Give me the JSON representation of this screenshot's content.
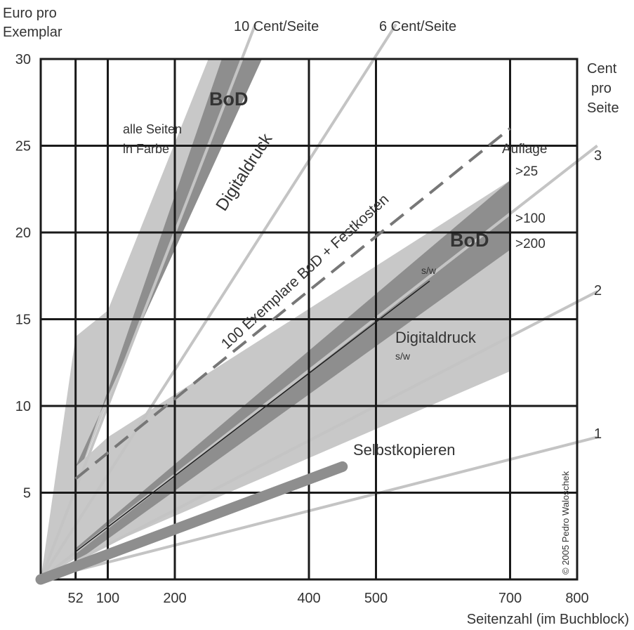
{
  "chart_data": {
    "type": "area",
    "xlabel": "Seitenzahl (im Buchblock)",
    "ylabel_line1": "Euro pro",
    "ylabel_line2": "Exemplar",
    "right_axis_line1": "Cent",
    "right_axis_line2": "pro",
    "right_axis_line3": "Seite",
    "x_ticks": [
      52,
      100,
      200,
      400,
      500,
      700,
      800
    ],
    "y_ticks": [
      5,
      10,
      15,
      20,
      25,
      30
    ],
    "xlim": [
      0,
      800
    ],
    "ylim": [
      0,
      30
    ],
    "grid": true,
    "colors": {
      "band_light": "#c8c8c8",
      "band_dark": "#8e8e8e",
      "reference_line": "#c4c4c4",
      "grid": "#1a1a1a",
      "dashed": "#777777",
      "text": "#333333"
    },
    "reference_lines": [
      {
        "label": "10 Cent/Seite",
        "cent_per_page": 10,
        "points": [
          [
            0,
            0
          ],
          [
            320,
            32
          ]
        ]
      },
      {
        "label": "6 Cent/Seite",
        "cent_per_page": 6,
        "points": [
          [
            0,
            0
          ],
          [
            530,
            32
          ]
        ]
      },
      {
        "label": "3",
        "cent_per_page": 3,
        "points": [
          [
            0,
            0
          ],
          [
            830,
            25
          ]
        ]
      },
      {
        "label": "2",
        "cent_per_page": 2,
        "points": [
          [
            0,
            0
          ],
          [
            830,
            16.6
          ]
        ]
      },
      {
        "label": "1",
        "cent_per_page": 1,
        "points": [
          [
            0,
            0
          ],
          [
            830,
            8.2
          ]
        ]
      }
    ],
    "regions": [
      {
        "name": "Digitaldruck (Farbe)",
        "points": [
          [
            0,
            0
          ],
          [
            52,
            14
          ],
          [
            100,
            15.5
          ],
          [
            250,
            30
          ],
          [
            300,
            30
          ],
          [
            52,
            5.5
          ]
        ]
      },
      {
        "name": "BoD (Farbe)",
        "points": [
          [
            52,
            5.5
          ],
          [
            270,
            30
          ],
          [
            330,
            30
          ],
          [
            52,
            6.5
          ]
        ]
      },
      {
        "name": "Digitaldruck s/w",
        "points": [
          [
            0,
            0
          ],
          [
            52,
            6.5
          ],
          [
            100,
            8.2
          ],
          [
            700,
            23
          ],
          [
            700,
            12
          ],
          [
            52,
            1.2
          ]
        ]
      },
      {
        "name": "BoD s/w",
        "points": [
          [
            52,
            1.8
          ],
          [
            700,
            23
          ],
          [
            700,
            19
          ],
          [
            52,
            1
          ]
        ]
      }
    ],
    "series": [
      {
        "name": "s/w",
        "points": [
          [
            52,
            1.6
          ],
          [
            580,
            17.2
          ]
        ]
      },
      {
        "name": "100 Exemplare BoD + Festkosten",
        "points": [
          [
            52,
            5.8
          ],
          [
            700,
            26
          ]
        ]
      },
      {
        "name": "Selbstkopieren",
        "points": [
          [
            0,
            0
          ],
          [
            450,
            6.5
          ]
        ]
      }
    ],
    "annotations": {
      "cent_10": "10 Cent/Seite",
      "cent_6": "6 Cent/Seite",
      "alle_seiten": "alle Seiten",
      "in_farbe": "in Farbe",
      "bod_top": "BoD",
      "digitaldruck_top": "Digitaldruck",
      "festkosten": "100 Exemplare BoD + Festkosten",
      "auflage": "Auflage",
      "auflage_25": ">25",
      "auflage_100": ">100",
      "auflage_200": ">200",
      "bod_mid": "BoD",
      "sw_1": "s/w",
      "digitaldruck_mid": "Digitaldruck",
      "sw_2": "s/w",
      "selbstkopieren": "Selbstkopieren",
      "right_3": "3",
      "right_2": "2",
      "right_1": "1",
      "copyright": "© 2005 Pedro Waloschek"
    }
  }
}
